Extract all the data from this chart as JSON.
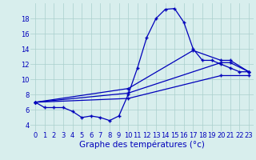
{
  "background_color": "#d8eeed",
  "grid_color": "#aacfcc",
  "line_color": "#0000bb",
  "xlabel": "Graphe des températures (°c)",
  "xlabel_fontsize": 7.5,
  "tick_fontsize": 6,
  "yticks": [
    4,
    6,
    8,
    10,
    12,
    14,
    16,
    18
  ],
  "ylim": [
    3.2,
    20.0
  ],
  "xlim": [
    -0.5,
    23.5
  ],
  "xticks": [
    0,
    1,
    2,
    3,
    4,
    5,
    6,
    7,
    8,
    9,
    10,
    11,
    12,
    13,
    14,
    15,
    16,
    17,
    18,
    19,
    20,
    21,
    22,
    23
  ],
  "line1_x": [
    0,
    1,
    2,
    3,
    4,
    5,
    6,
    7,
    8,
    9,
    10,
    11,
    12,
    13,
    14,
    15,
    16,
    17,
    18,
    19,
    20,
    21,
    22,
    23
  ],
  "line1_y": [
    7.0,
    6.3,
    6.3,
    6.3,
    5.8,
    5.0,
    5.2,
    5.0,
    4.6,
    5.2,
    8.0,
    11.5,
    15.5,
    18.0,
    19.2,
    19.3,
    17.5,
    14.0,
    12.5,
    12.5,
    12.0,
    11.5,
    11.0,
    11.0
  ],
  "line2_x": [
    0,
    10,
    17,
    20,
    21,
    23
  ],
  "line2_y": [
    7.0,
    8.8,
    13.8,
    12.5,
    12.5,
    11.0
  ],
  "line3_x": [
    0,
    10,
    20,
    21,
    23
  ],
  "line3_y": [
    7.0,
    8.2,
    12.2,
    12.2,
    11.0
  ],
  "line4_x": [
    0,
    10,
    20,
    23
  ],
  "line4_y": [
    7.0,
    7.5,
    10.5,
    10.5
  ]
}
